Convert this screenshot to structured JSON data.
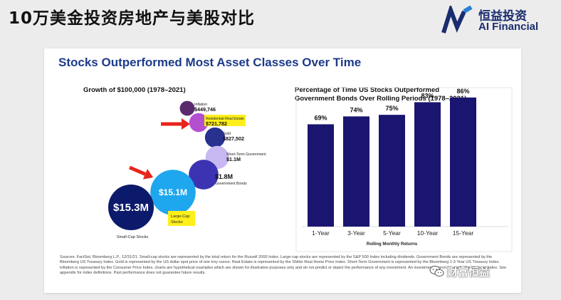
{
  "page_title": "10万美金投资房地产与美股对比",
  "brand": {
    "cn_name": "恒益投资",
    "en_name": "AI Financial",
    "brand_color": "#1b2c6e",
    "accent_color": "#2a7fd6"
  },
  "card": {
    "heading": "Stocks Outperformed Most Asset Classes Over Time",
    "left_title": "Growth of $100,000 (1978–2021)",
    "right_title_line1": "Percentage of Time US Stocks Outperformed",
    "right_title_line2": "Government Bonds Over Rolling Periods (1978–2021)",
    "footnote": "Sources: FactSet, Bloomberg L.P., 12/31/21. Small-cap stocks are represented by the total return for the Russell 2000 Index. Large-cap stocks are represented by the S&P 500 Index including dividends. Government Bonds are represented by the Bloomberg US Treasury Index. Gold is represented by the US dollar spot price of one troy ounce. Real Estate is represented by the Shiller Real Home Price Index. Short-Term Government is represented by the Bloomberg 1-3 Year US Treasury Index. Inflation is represented by the Consumer Price Index. charts are hypothetical examples which are shown for illustrative purposes only and do not predict or depict the performance of any investment. An investment cannot be made directly in an index. See appendix for index definitions. Past performance does not guarantee future results."
  },
  "watermark": "财富恒益",
  "chart_data": [
    {
      "type": "bubble",
      "title": "Growth of $100,000 (1978–2021)",
      "series": [
        {
          "name": "Inflation",
          "value_label": "$449,746",
          "value": 449746,
          "color": "#5b2a6e"
        },
        {
          "name": "Residential Real Estate",
          "value_label": "$721,782",
          "value": 721782,
          "color": "#b44fd0",
          "highlighted": true
        },
        {
          "name": "Gold",
          "value_label": "$827,502",
          "value": 827502,
          "color": "#27318f"
        },
        {
          "name": "Short-Term Government",
          "value_label": "$1.1M",
          "value": 1100000,
          "color": "#c7b8f2"
        },
        {
          "name": "Government Bonds",
          "value_label": "$1.8M",
          "value": 1800000,
          "color": "#3c33b2"
        },
        {
          "name": "Large-Cap Stocks",
          "value_label": "$15.1M",
          "value": 15100000,
          "color": "#1ea7ee",
          "highlighted": true
        },
        {
          "name": "Small-Cap Stocks",
          "value_label": "$15.3M",
          "value": 15300000,
          "color": "#0c1a6b"
        }
      ],
      "highlight_color": "#ffef1a",
      "arrow_color": "#e8241c"
    },
    {
      "type": "bar",
      "title": "Percentage of Time US Stocks Outperformed Government Bonds Over Rolling Periods (1978–2021)",
      "categories": [
        "1-Year",
        "3-Year",
        "5-Year",
        "10-Year",
        "15-Year"
      ],
      "values": [
        69,
        74,
        75,
        83,
        86
      ],
      "data_labels": [
        "69%",
        "74%",
        "75%",
        "83%",
        "86%"
      ],
      "xlabel": "Rolling Monthly Returns",
      "ylabel": "",
      "ylim": [
        0,
        100
      ],
      "bar_color": "#1a1570",
      "grid": false
    }
  ]
}
